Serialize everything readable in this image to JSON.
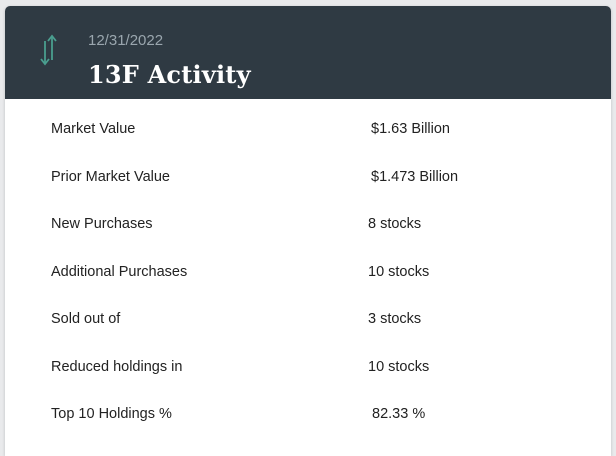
{
  "card": {
    "icon": "up-down-arrows-icon",
    "date": "12/31/2022",
    "title": "13F Activity"
  },
  "colors": {
    "header_bg": "#2f3a43",
    "accent_icon": "#4a9e8f",
    "date_text": "#9aa6ae",
    "title_text": "#ffffff"
  },
  "rows": [
    {
      "label": "Market Value",
      "value": "$1.63 Billion"
    },
    {
      "label": "Prior Market Value",
      "value": "$1.473 Billion"
    },
    {
      "label": "New Purchases",
      "value": "8 stocks"
    },
    {
      "label": "Additional Purchases",
      "value": "10 stocks"
    },
    {
      "label": "Sold out of",
      "value": "3 stocks"
    },
    {
      "label": "Reduced holdings in",
      "value": "10 stocks"
    },
    {
      "label": "Top 10 Holdings %",
      "value": "82.33 %"
    }
  ]
}
